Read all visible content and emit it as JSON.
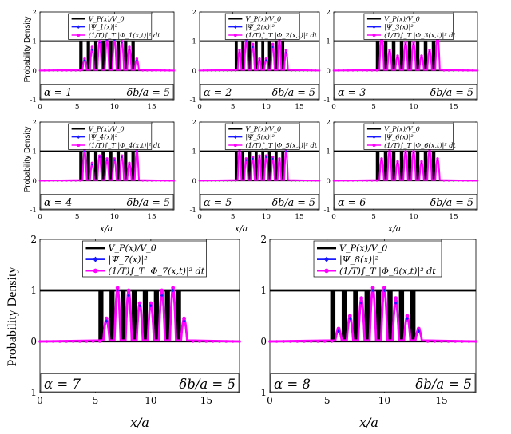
{
  "figure": {
    "ylabel": "Probability Density",
    "xlabel": "x/a"
  },
  "chart_data": [
    {
      "id": "p1",
      "type": "line",
      "alpha_label": "α = 1",
      "db_label": "δb/a = 5",
      "legend": [
        "V_P(x)/V_0",
        "|Ψ_1(x)|²",
        "(1/T)∫_T |Φ_1(x,t)|² dt"
      ],
      "xlim": [
        0,
        18
      ],
      "ylim": [
        -1,
        2
      ],
      "xticks": [
        0,
        5,
        10,
        15
      ],
      "yticks": [
        -1,
        0,
        1,
        2
      ],
      "barriers": [
        5.5,
        6.5,
        7.5,
        8.5,
        9.5,
        10.5,
        11.5,
        12.5
      ],
      "psi_peaks": [
        0.35,
        0.7,
        0.95,
        1.05,
        1.05,
        0.95,
        0.7,
        0.35
      ],
      "avg_peaks": [
        0.4,
        0.8,
        1.0,
        1.05,
        1.05,
        1.0,
        0.8,
        0.4
      ]
    },
    {
      "id": "p2",
      "type": "line",
      "alpha_label": "α = 2",
      "db_label": "δb/a = 5",
      "legend": [
        "V_P(x)/V_0",
        "|Ψ_2(x)|²",
        "(1/T)∫_T |Φ_2(x,t)|² dt"
      ],
      "xlim": [
        0,
        18
      ],
      "ylim": [
        -1,
        2
      ],
      "xticks": [
        0,
        5,
        10,
        15
      ],
      "yticks": [
        -1,
        0,
        1,
        2
      ],
      "barriers": [
        5.5,
        6.5,
        7.5,
        8.5,
        9.5,
        10.5,
        11.5,
        12.5
      ],
      "psi_peaks": [
        0.6,
        1.0,
        0.8,
        0.35,
        0.35,
        0.8,
        1.0,
        0.6
      ],
      "avg_peaks": [
        0.7,
        1.05,
        0.9,
        0.4,
        0.4,
        0.9,
        1.05,
        0.7
      ]
    },
    {
      "id": "p3",
      "type": "line",
      "alpha_label": "α = 3",
      "db_label": "δb/a = 5",
      "legend": [
        "V_P(x)/V_0",
        "|Ψ_3(x)|²",
        "(1/T)∫_T |Φ_3(x,t)|² dt"
      ],
      "xlim": [
        0,
        18
      ],
      "ylim": [
        -1,
        2
      ],
      "xticks": [
        0,
        5,
        10,
        15
      ],
      "yticks": [
        -1,
        0,
        1,
        2
      ],
      "barriers": [
        5.5,
        6.5,
        7.5,
        8.5,
        9.5,
        10.5,
        11.5,
        12.5
      ],
      "psi_peaks": [
        1.1,
        0.65,
        0.45,
        0.9,
        0.9,
        0.45,
        0.65,
        1.1
      ],
      "avg_peaks": [
        1.2,
        0.7,
        0.5,
        0.95,
        0.95,
        0.5,
        0.7,
        1.2
      ]
    },
    {
      "id": "p4",
      "type": "line",
      "alpha_label": "α = 4",
      "db_label": "δb/a = 5",
      "legend": [
        "V_P(x)/V_0",
        "|Ψ_4(x)|²",
        "(1/T)∫_T |Φ_4(x,t)|² dt"
      ],
      "xlim": [
        0,
        18
      ],
      "ylim": [
        -1,
        2
      ],
      "xticks": [
        0,
        5,
        10,
        15
      ],
      "yticks": [
        -1,
        0,
        1,
        2
      ],
      "barriers": [
        5.5,
        6.5,
        7.5,
        8.5,
        9.5,
        10.5,
        11.5,
        12.5
      ],
      "psi_peaks": [
        1.0,
        0.55,
        0.8,
        0.7,
        0.7,
        0.8,
        0.55,
        1.0
      ],
      "avg_peaks": [
        1.05,
        0.6,
        0.85,
        0.75,
        0.75,
        0.85,
        0.6,
        1.05
      ]
    },
    {
      "id": "p5",
      "type": "line",
      "alpha_label": "α = 5",
      "db_label": "δb/a = 5",
      "legend": [
        "V_P(x)/V_0",
        "|Ψ_5(x)|²",
        "(1/T)∫_T |Φ_5(x,t)|² dt"
      ],
      "xlim": [
        0,
        18
      ],
      "ylim": [
        -1,
        2
      ],
      "xticks": [
        0,
        5,
        10,
        15
      ],
      "yticks": [
        -1,
        0,
        1,
        2
      ],
      "barriers": [
        5.5,
        6.5,
        7.5,
        8.5,
        9.5,
        10.5,
        11.5,
        12.5
      ],
      "psi_peaks": [
        1.0,
        0.7,
        0.75,
        0.8,
        0.8,
        0.75,
        0.7,
        1.0
      ],
      "avg_peaks": [
        1.05,
        0.75,
        0.8,
        0.85,
        0.85,
        0.8,
        0.75,
        1.05
      ]
    },
    {
      "id": "p6",
      "type": "line",
      "alpha_label": "α = 6",
      "db_label": "δb/a = 5",
      "legend": [
        "V_P(x)/V_0",
        "|Ψ_6(x)|²",
        "(1/T)∫_T |Φ_6(x,t)|² dt"
      ],
      "xlim": [
        0,
        18
      ],
      "ylim": [
        -1,
        2
      ],
      "xticks": [
        0,
        5,
        10,
        15
      ],
      "yticks": [
        -1,
        0,
        1,
        2
      ],
      "barriers": [
        5.5,
        6.5,
        7.5,
        8.5,
        9.5,
        10.5,
        11.5,
        12.5
      ],
      "psi_peaks": [
        0.7,
        1.0,
        0.6,
        0.95,
        0.95,
        0.6,
        1.0,
        0.7
      ],
      "avg_peaks": [
        0.75,
        1.05,
        0.65,
        1.0,
        1.0,
        0.65,
        1.05,
        0.75
      ]
    },
    {
      "id": "p7",
      "type": "line",
      "alpha_label": "α = 7",
      "db_label": "δb/a = 5",
      "legend": [
        "V_P(x)/V_0",
        "|Ψ_7(x)|²",
        "(1/T)∫_T |Φ_7(x,t)|² dt"
      ],
      "xlim": [
        0,
        18
      ],
      "ylim": [
        -1,
        2
      ],
      "xticks": [
        0,
        5,
        10,
        15
      ],
      "yticks": [
        -1,
        0,
        1,
        2
      ],
      "barriers": [
        5.5,
        6.5,
        7.5,
        8.5,
        9.5,
        10.5,
        11.5,
        12.5
      ],
      "psi_peaks": [
        0.4,
        1.0,
        0.9,
        0.7,
        0.7,
        0.9,
        1.0,
        0.4
      ],
      "avg_peaks": [
        0.45,
        1.05,
        1.0,
        0.75,
        0.75,
        1.0,
        1.05,
        0.45
      ]
    },
    {
      "id": "p8",
      "type": "line",
      "alpha_label": "α = 8",
      "db_label": "δb/a = 5",
      "legend": [
        "V_P(x)/V_0",
        "|Ψ_8(x)|²",
        "(1/T)∫_T |Φ_8(x,t)|² dt"
      ],
      "xlim": [
        0,
        18
      ],
      "ylim": [
        -1,
        2
      ],
      "xticks": [
        0,
        5,
        10,
        15
      ],
      "yticks": [
        -1,
        0,
        1,
        2
      ],
      "barriers": [
        5.5,
        6.5,
        7.5,
        8.5,
        9.5,
        10.5,
        11.5,
        12.5
      ],
      "psi_peaks": [
        0.2,
        0.45,
        0.75,
        1.0,
        1.0,
        0.75,
        0.45,
        0.2
      ],
      "avg_peaks": [
        0.25,
        0.5,
        0.85,
        1.05,
        1.05,
        0.85,
        0.5,
        0.25
      ]
    }
  ]
}
